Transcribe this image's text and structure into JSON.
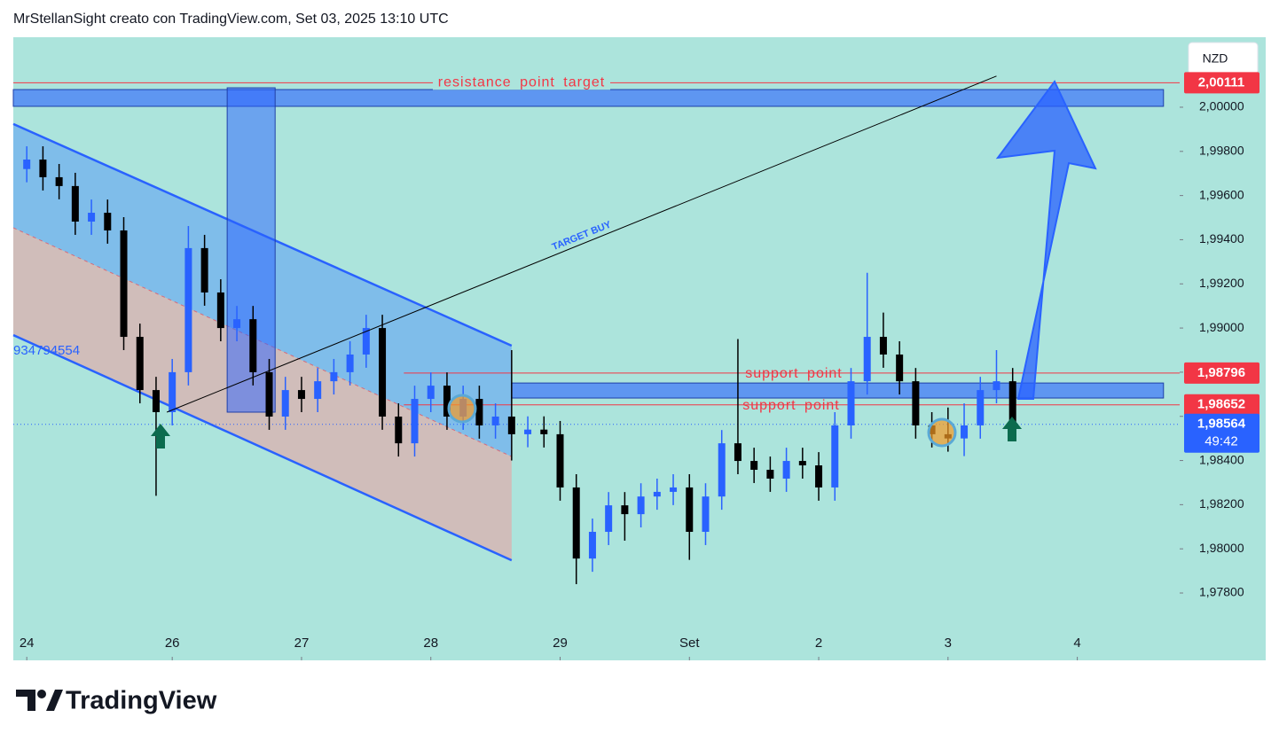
{
  "header": "MrStellanSight creato con TradingView.com, Set 03, 2025 13:10 UTC",
  "brand": "TradingView",
  "chart_data": {
    "type": "candlestick",
    "currency": "NZD",
    "up_color": "#2962ff",
    "down_color": "#000000",
    "x": [
      0,
      3,
      6,
      9,
      12,
      15,
      18,
      21,
      24,
      27,
      30,
      33,
      36,
      39,
      42,
      45,
      48,
      51,
      54,
      57,
      60,
      63,
      66,
      69,
      72,
      75,
      78,
      81,
      84,
      87,
      90,
      93,
      96,
      99,
      102,
      105,
      108,
      111,
      114,
      117,
      120,
      123,
      126,
      129,
      132,
      135,
      138,
      141,
      144,
      147,
      150,
      153,
      156,
      159,
      162,
      165,
      168,
      171,
      174,
      177,
      180,
      183
    ],
    "open": [
      1.9972,
      1.99763,
      1.99683,
      1.99643,
      1.99482,
      1.99522,
      1.99442,
      1.9896,
      1.98719,
      1.98619,
      1.988,
      1.99362,
      1.99161,
      1.99,
      1.9904,
      1.988,
      1.98599,
      1.98719,
      1.98679,
      1.98759,
      1.988,
      1.9888,
      1.99,
      1.98599,
      1.98478,
      1.98679,
      1.98739,
      1.98599,
      1.98679,
      1.98559,
      1.98599,
      1.98519,
      1.9854,
      1.98519,
      1.98278,
      1.97956,
      1.98077,
      1.98197,
      1.98157,
      1.98237,
      1.98258,
      1.98278,
      1.98077,
      1.98237,
      1.98478,
      1.98398,
      1.98358,
      1.98318,
      1.98398,
      1.98378,
      1.98278,
      1.98559,
      1.98759,
      1.9896,
      1.9888,
      1.98759,
      1.98559,
      1.98519,
      1.985,
      1.98559,
      1.98719,
      1.98759
    ],
    "high": [
      1.99823,
      1.99823,
      1.99743,
      1.99703,
      1.99582,
      1.99582,
      1.99502,
      1.9902,
      1.98779,
      1.9886,
      1.99462,
      1.99422,
      1.99221,
      1.991,
      1.991,
      1.9886,
      1.98779,
      1.98779,
      1.98819,
      1.9886,
      1.9894,
      1.9906,
      1.9906,
      1.98659,
      1.98739,
      1.98799,
      1.98799,
      1.98739,
      1.98739,
      1.98659,
      1.989,
      1.986,
      1.986,
      1.98579,
      1.98338,
      1.98137,
      1.98257,
      1.98257,
      1.98297,
      1.98318,
      1.98338,
      1.98338,
      1.98297,
      1.98538,
      1.9895,
      1.98458,
      1.98418,
      1.98458,
      1.98458,
      1.98438,
      1.98619,
      1.98819,
      1.9925,
      1.9907,
      1.9894,
      1.98819,
      1.98619,
      1.9864,
      1.98659,
      1.98779,
      1.989,
      1.98819
    ],
    "low": [
      1.9966,
      1.99623,
      1.99583,
      1.99422,
      1.99422,
      1.99382,
      1.989,
      1.98659,
      1.9824,
      1.98559,
      1.9874,
      1.99101,
      1.9894,
      1.9894,
      1.9874,
      1.98539,
      1.98539,
      1.98619,
      1.98619,
      1.98699,
      1.9874,
      1.9882,
      1.98539,
      1.98418,
      1.98418,
      1.98619,
      1.98539,
      1.98539,
      1.98499,
      1.98499,
      1.984,
      1.9846,
      1.98459,
      1.98218,
      1.9784,
      1.97896,
      1.98017,
      1.98037,
      1.98097,
      1.98177,
      1.98198,
      1.9795,
      1.98017,
      1.98177,
      1.98338,
      1.98298,
      1.98258,
      1.98258,
      1.98318,
      1.98218,
      1.98218,
      1.98499,
      1.98699,
      1.9882,
      1.98699,
      1.98499,
      1.98459,
      1.9844,
      1.9842,
      1.98499,
      1.98659,
      1.9853
    ],
    "close": [
      1.99763,
      1.99683,
      1.99643,
      1.99482,
      1.99522,
      1.99442,
      1.9896,
      1.98719,
      1.98619,
      1.988,
      1.99362,
      1.99161,
      1.99,
      1.9904,
      1.988,
      1.98599,
      1.98719,
      1.98679,
      1.98759,
      1.988,
      1.9888,
      1.99,
      1.98599,
      1.98478,
      1.98679,
      1.98739,
      1.98599,
      1.98679,
      1.98559,
      1.98599,
      1.98519,
      1.9854,
      1.98519,
      1.98278,
      1.97956,
      1.98077,
      1.98197,
      1.98157,
      1.98237,
      1.98258,
      1.98278,
      1.98077,
      1.98237,
      1.98478,
      1.98398,
      1.98358,
      1.98318,
      1.98398,
      1.98378,
      1.98278,
      1.98559,
      1.98759,
      1.9896,
      1.9888,
      1.98759,
      1.98559,
      1.98519,
      1.985,
      1.98559,
      1.98719,
      1.98759,
      1.98559
    ],
    "xlim": [
      -2.5,
      214
    ],
    "xticks": [
      {
        "value": 0,
        "label": "24"
      },
      {
        "value": 27,
        "label": "26"
      },
      {
        "value": 51,
        "label": "27"
      },
      {
        "value": 75,
        "label": "28"
      },
      {
        "value": 99,
        "label": "29"
      },
      {
        "value": 123,
        "label": "Set"
      },
      {
        "value": 147,
        "label": "2"
      },
      {
        "value": 171,
        "label": "3"
      },
      {
        "value": 195,
        "label": "4"
      }
    ],
    "ylim": [
      1.97495,
      2.00317
    ],
    "yticks": [
      {
        "value": 1.978,
        "label": "1,97800"
      },
      {
        "value": 1.98,
        "label": "1,98000"
      },
      {
        "value": 1.982,
        "label": "1,98200"
      },
      {
        "value": 1.984,
        "label": "1,98400"
      },
      {
        "value": 1.986,
        "label": "1,98600"
      },
      {
        "value": 1.988,
        "label": "1,98800"
      },
      {
        "value": 1.99,
        "label": "1,99000"
      },
      {
        "value": 1.992,
        "label": "1,99200"
      },
      {
        "value": 1.994,
        "label": "1,99400"
      },
      {
        "value": 1.996,
        "label": "1,99600"
      },
      {
        "value": 1.998,
        "label": "1,99800"
      },
      {
        "value": 2.0,
        "label": "2,00000"
      }
    ],
    "levels": [
      {
        "name": "resistance point target",
        "value": 2.00111,
        "label": "2,00111",
        "color": "#f23645"
      },
      {
        "name": "support point",
        "value": 1.98796,
        "label": "1,98796",
        "color": "#f23645"
      },
      {
        "name": "support point",
        "value": 1.98652,
        "label": "1,98652",
        "color": "#f23645"
      }
    ],
    "last_price": {
      "value": 1.98564,
      "label": "1,98564",
      "countdown": "49:42",
      "color": "#2962ff"
    },
    "zones": [
      {
        "x": [
          -2.5,
          211
        ],
        "y": [
          2.00004,
          2.0008
        ]
      },
      {
        "x": [
          90,
          211
        ],
        "y": [
          1.98683,
          1.98751
        ]
      }
    ],
    "box": {
      "x": [
        37.2,
        46.1
      ],
      "y": [
        1.98619,
        2.00088
      ]
    },
    "channel": {
      "label": "934794554",
      "x": [
        -2.5,
        90
      ],
      "upper": [
        1.99924,
        1.9892
      ],
      "middle": [
        1.99454,
        1.98418
      ],
      "lower": [
        1.98968,
        1.97948
      ]
    },
    "target_line": {
      "label": "TARGET BUY",
      "x": [
        26,
        180
      ],
      "y": [
        1.98619,
        2.00141
      ]
    }
  }
}
